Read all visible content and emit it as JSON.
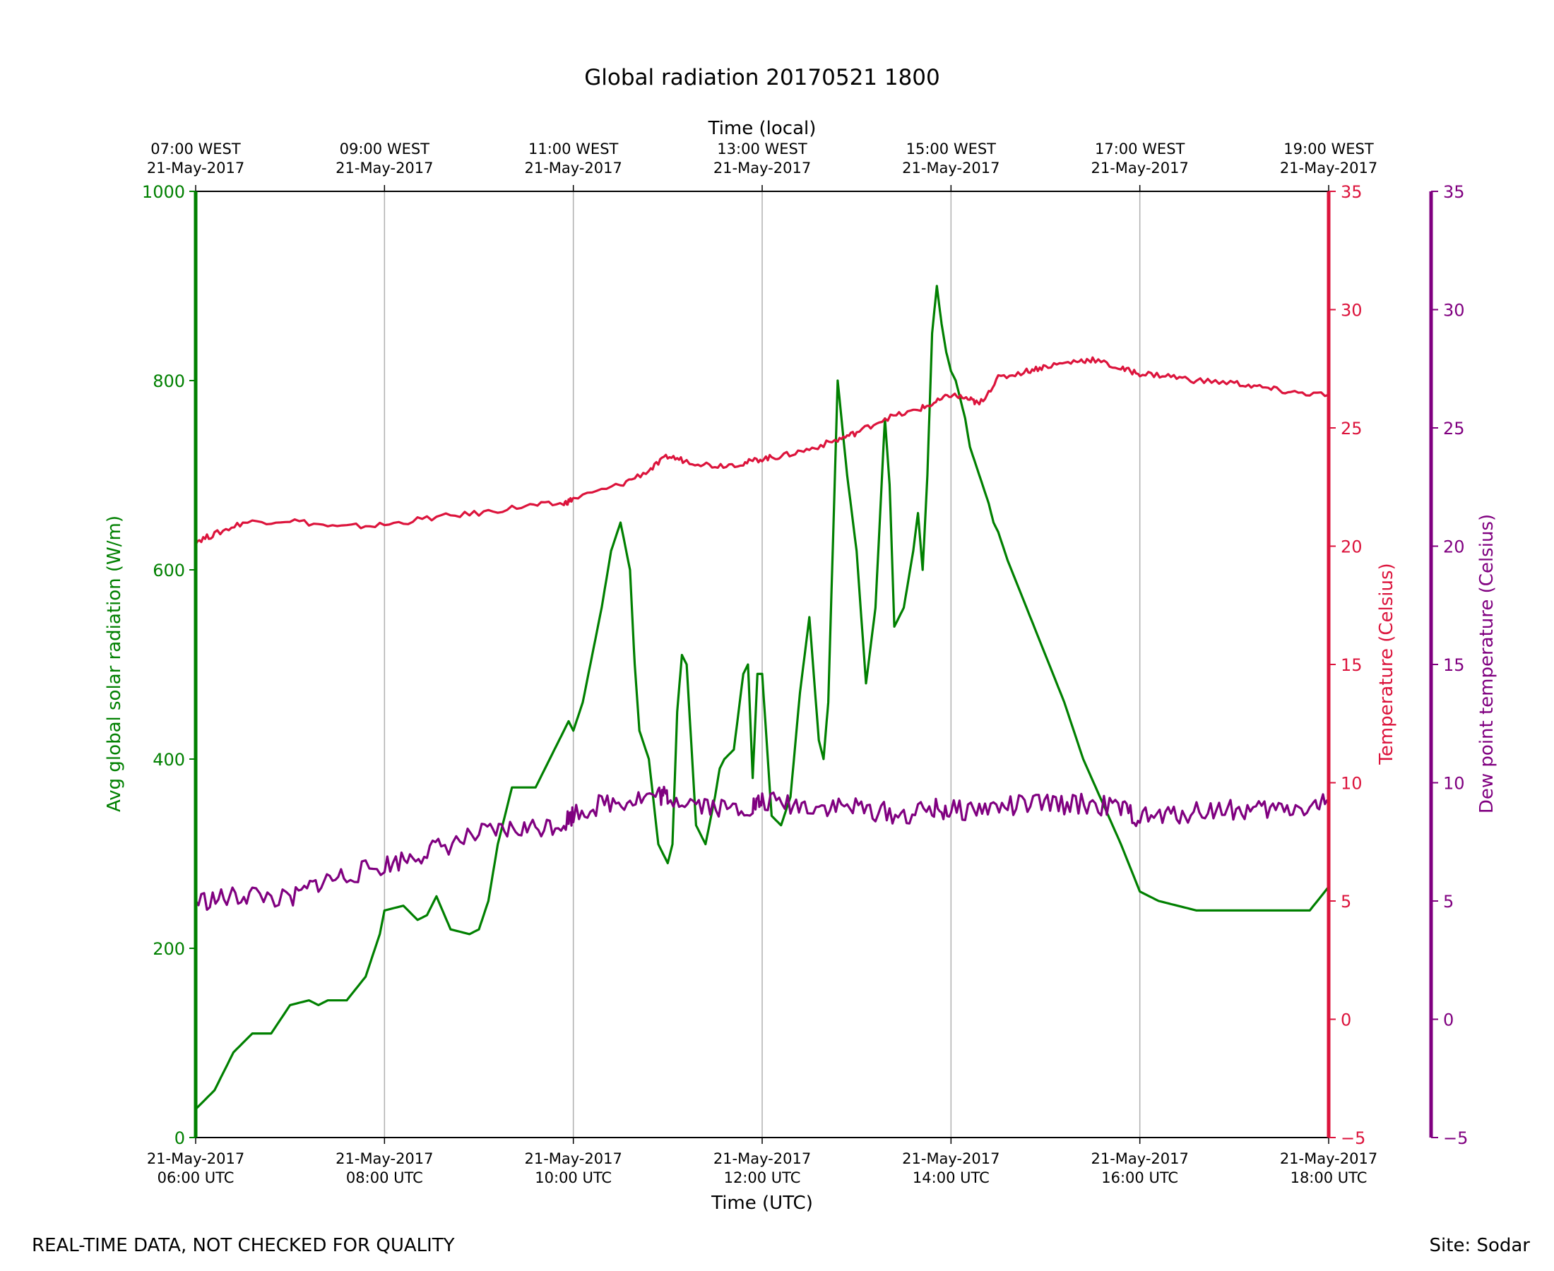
{
  "chart_data": {
    "type": "line",
    "title": "Global radiation 20170521 1800",
    "footer_left": "REAL-TIME DATA, NOT CHECKED FOR QUALITY",
    "footer_right": "Site: Sodar",
    "xlabel": "Time (UTC)",
    "x2label": "Time (local)",
    "x_range_hours": [
      6,
      18
    ],
    "x_ticks": [
      {
        "hour": 6,
        "date": "21-May-2017",
        "utc": "06:00 UTC",
        "local_time": "07:00 WEST",
        "local_date": "21-May-2017"
      },
      {
        "hour": 8,
        "date": "21-May-2017",
        "utc": "08:00 UTC",
        "local_time": "09:00 WEST",
        "local_date": "21-May-2017"
      },
      {
        "hour": 10,
        "date": "21-May-2017",
        "utc": "10:00 UTC",
        "local_time": "11:00 WEST",
        "local_date": "21-May-2017"
      },
      {
        "hour": 12,
        "date": "21-May-2017",
        "utc": "12:00 UTC",
        "local_time": "13:00 WEST",
        "local_date": "21-May-2017"
      },
      {
        "hour": 14,
        "date": "21-May-2017",
        "utc": "14:00 UTC",
        "local_time": "15:00 WEST",
        "local_date": "21-May-2017"
      },
      {
        "hour": 16,
        "date": "21-May-2017",
        "utc": "16:00 UTC",
        "local_time": "17:00 WEST",
        "local_date": "21-May-2017"
      },
      {
        "hour": 18,
        "date": "21-May-2017",
        "utc": "18:00 UTC",
        "local_time": "19:00 WEST",
        "local_date": "21-May-2017"
      }
    ],
    "y_left": {
      "label": "Avg global solar radiation (W/m)",
      "ylim": [
        0,
        1000
      ],
      "ticks": [
        "0",
        "200",
        "400",
        "600",
        "800",
        "1000"
      ],
      "color": "#008000"
    },
    "y_right1": {
      "label": "Temperature (Celsius)",
      "ylim": [
        -5,
        35
      ],
      "ticks": [
        "−5",
        "0",
        "5",
        "10",
        "15",
        "20",
        "25",
        "30",
        "35"
      ],
      "color": "#dc143c"
    },
    "y_right2": {
      "label": "Dew point temperature (Celsius)",
      "ylim": [
        -5,
        35
      ],
      "ticks": [
        "−5",
        "0",
        "5",
        "10",
        "15",
        "20",
        "25",
        "30",
        "35"
      ],
      "color": "#800080"
    },
    "series": [
      {
        "name": "Avg global solar radiation",
        "axis": "left",
        "color": "#008000",
        "x_hours": [
          6.0,
          6.2,
          6.4,
          6.6,
          6.8,
          7.0,
          7.2,
          7.3,
          7.4,
          7.6,
          7.8,
          7.95,
          8.0,
          8.2,
          8.35,
          8.45,
          8.55,
          8.7,
          8.9,
          9.0,
          9.1,
          9.2,
          9.35,
          9.6,
          9.8,
          9.95,
          10.0,
          10.1,
          10.2,
          10.3,
          10.4,
          10.5,
          10.6,
          10.65,
          10.7,
          10.8,
          10.9,
          11.0,
          11.05,
          11.1,
          11.15,
          11.2,
          11.3,
          11.4,
          11.5,
          11.55,
          11.6,
          11.7,
          11.8,
          11.85,
          11.9,
          11.95,
          12.0,
          12.1,
          12.2,
          12.3,
          12.4,
          12.5,
          12.6,
          12.65,
          12.7,
          12.8,
          12.9,
          13.0,
          13.1,
          13.2,
          13.3,
          13.35,
          13.4,
          13.5,
          13.6,
          13.65,
          13.7,
          13.75,
          13.8,
          13.85,
          13.9,
          13.95,
          14.0,
          14.05,
          14.1,
          14.15,
          14.2,
          14.3,
          14.4,
          14.45,
          14.5,
          14.6,
          14.8,
          15.0,
          15.2,
          15.4,
          15.6,
          15.8,
          16.0,
          16.2,
          16.4,
          16.6,
          16.8,
          17.0,
          17.2,
          17.4,
          17.6,
          17.8,
          18.0
        ],
        "values": [
          30,
          50,
          90,
          110,
          110,
          140,
          145,
          140,
          145,
          145,
          170,
          215,
          240,
          245,
          230,
          235,
          255,
          220,
          215,
          220,
          250,
          310,
          370,
          370,
          410,
          440,
          430,
          460,
          510,
          560,
          620,
          650,
          600,
          500,
          430,
          400,
          310,
          290,
          310,
          450,
          510,
          500,
          330,
          310,
          360,
          390,
          400,
          410,
          490,
          500,
          380,
          490,
          490,
          340,
          330,
          360,
          470,
          550,
          420,
          400,
          460,
          800,
          700,
          620,
          480,
          560,
          760,
          690,
          540,
          560,
          620,
          660,
          600,
          700,
          850,
          900,
          860,
          830,
          810,
          800,
          780,
          760,
          730,
          700,
          670,
          650,
          640,
          610,
          560,
          510,
          460,
          400,
          355,
          310,
          260,
          250,
          245,
          240,
          240,
          240,
          240,
          240,
          240,
          240,
          265
        ],
        "note": "gaps between segments in original"
      },
      {
        "name": "Temperature",
        "axis": "right1",
        "color": "#dc143c",
        "x_hours": [
          6.0,
          6.2,
          6.5,
          7.0,
          7.5,
          8.0,
          8.5,
          9.0,
          9.5,
          9.9,
          10.0,
          10.5,
          10.8,
          11.0,
          11.2,
          11.5,
          11.8,
          12.0,
          12.2,
          12.5,
          12.8,
          13.0,
          13.3,
          13.6,
          13.8,
          14.0,
          14.2,
          14.3,
          14.5,
          14.8,
          15.0,
          15.3,
          15.5,
          15.8,
          16.0,
          16.3,
          16.6,
          17.0,
          17.3,
          17.6,
          18.0
        ],
        "values": [
          20.2,
          20.5,
          21.0,
          21.1,
          20.8,
          20.9,
          21.2,
          21.4,
          21.7,
          21.8,
          22.0,
          22.6,
          23.2,
          23.8,
          23.6,
          23.4,
          23.5,
          23.7,
          23.8,
          24.1,
          24.5,
          24.8,
          25.4,
          25.7,
          26.0,
          26.4,
          26.2,
          26.0,
          27.1,
          27.4,
          27.6,
          27.8,
          27.9,
          27.5,
          27.3,
          27.2,
          27.0,
          26.9,
          26.7,
          26.5,
          26.4
        ]
      },
      {
        "name": "Dew point temperature",
        "axis": "right2",
        "color": "#800080",
        "x_hours": [
          6.0,
          6.3,
          6.6,
          7.0,
          7.3,
          7.6,
          8.0,
          8.3,
          8.6,
          9.0,
          9.3,
          9.6,
          9.9,
          10.0,
          10.3,
          10.6,
          10.9,
          11.0,
          11.3,
          11.6,
          11.9,
          12.0,
          12.3,
          12.6,
          12.9,
          13.2,
          13.5,
          13.8,
          14.0,
          14.3,
          14.6,
          14.9,
          15.2,
          15.5,
          15.8,
          16.0,
          16.3,
          16.6,
          16.9,
          17.2,
          17.5,
          17.8,
          18.0
        ],
        "values": [
          5.0,
          5.1,
          5.3,
          5.0,
          5.8,
          6.1,
          6.5,
          6.9,
          7.3,
          7.8,
          8.0,
          8.1,
          8.3,
          8.7,
          9.1,
          9.3,
          9.5,
          9.4,
          9.2,
          8.9,
          9.0,
          9.2,
          9.1,
          9.0,
          9.0,
          8.8,
          8.6,
          8.9,
          8.8,
          8.9,
          9.0,
          9.1,
          9.1,
          9.1,
          8.9,
          8.5,
          8.6,
          8.8,
          8.9,
          8.8,
          8.9,
          9.0,
          9.2
        ]
      }
    ]
  }
}
